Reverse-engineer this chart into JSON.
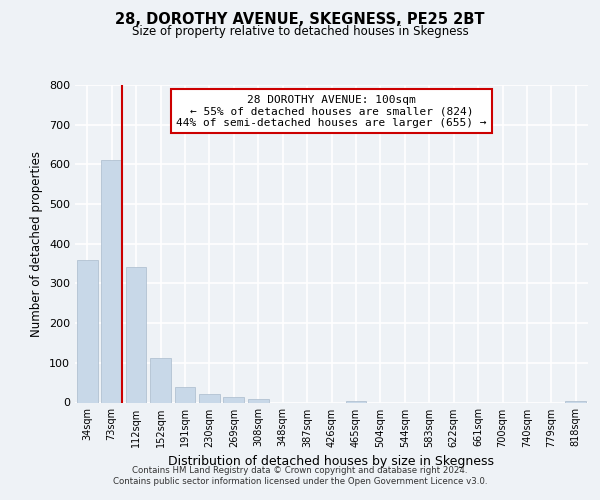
{
  "title": "28, DOROTHY AVENUE, SKEGNESS, PE25 2BT",
  "subtitle": "Size of property relative to detached houses in Skegness",
  "xlabel": "Distribution of detached houses by size in Skegness",
  "ylabel": "Number of detached properties",
  "bin_labels": [
    "34sqm",
    "73sqm",
    "112sqm",
    "152sqm",
    "191sqm",
    "230sqm",
    "269sqm",
    "308sqm",
    "348sqm",
    "387sqm",
    "426sqm",
    "465sqm",
    "504sqm",
    "544sqm",
    "583sqm",
    "622sqm",
    "661sqm",
    "700sqm",
    "740sqm",
    "779sqm",
    "818sqm"
  ],
  "bar_heights": [
    358,
    611,
    342,
    113,
    40,
    22,
    14,
    8,
    0,
    0,
    0,
    5,
    0,
    0,
    0,
    0,
    0,
    0,
    0,
    0,
    5
  ],
  "bar_color": "#c8d8e8",
  "bar_edge_color": "#aabbcc",
  "property_line_bin": 1,
  "property_line_color": "#cc0000",
  "annotation_line1": "28 DOROTHY AVENUE: 100sqm",
  "annotation_line2": "← 55% of detached houses are smaller (824)",
  "annotation_line3": "44% of semi-detached houses are larger (655) →",
  "annotation_box_color": "#ffffff",
  "annotation_box_edge": "#cc0000",
  "ylim": [
    0,
    800
  ],
  "yticks": [
    0,
    100,
    200,
    300,
    400,
    500,
    600,
    700,
    800
  ],
  "background_color": "#eef2f6",
  "plot_bg_color": "#eef2f6",
  "footer_line1": "Contains HM Land Registry data © Crown copyright and database right 2024.",
  "footer_line2": "Contains public sector information licensed under the Open Government Licence v3.0."
}
